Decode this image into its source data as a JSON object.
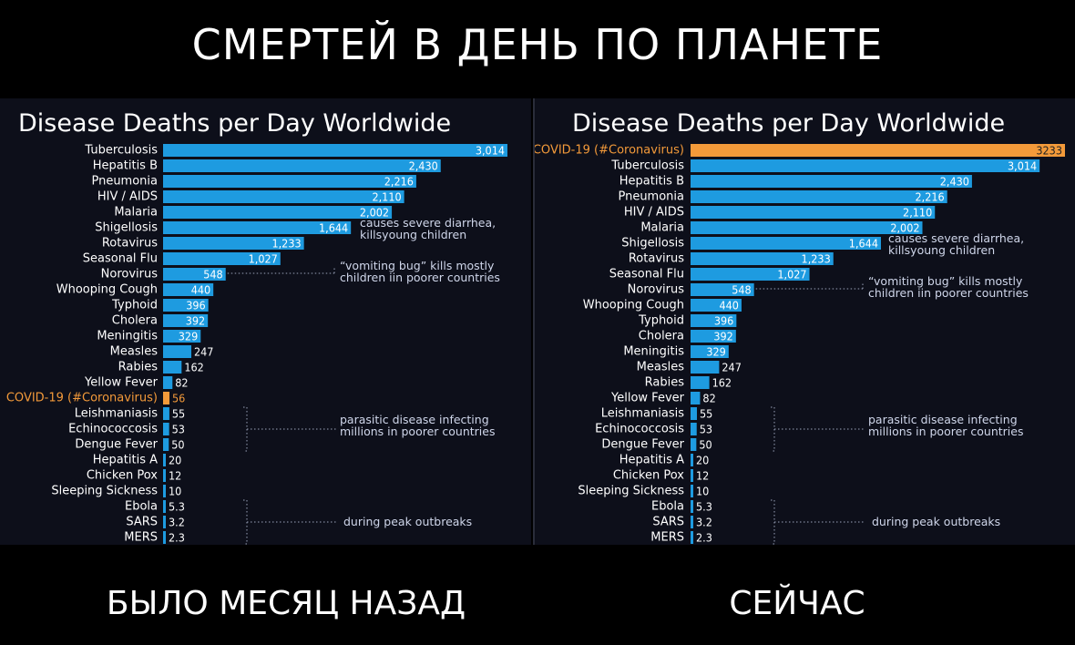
{
  "headline": "СМЕРТЕЙ В ДЕНЬ ПО ПЛАНЕТЕ",
  "captions": {
    "left": "БЫЛО МЕСЯЦ НАЗАД",
    "right": "СЕЙЧАС"
  },
  "colors": {
    "bar": "#1e9be0",
    "highlight": "#f39a3a",
    "label": "#ffffff",
    "note": "#cfd6ea",
    "background": "#0d0f1a"
  },
  "chart_data": [
    {
      "type": "bar",
      "title": "Disease Deaths per Day Worldwide",
      "orientation": "horizontal",
      "xlim": [
        0,
        3014
      ],
      "categories": [
        "Tuberculosis",
        "Hepatitis B",
        "Pneumonia",
        "HIV / AIDS",
        "Malaria",
        "Shigellosis",
        "Rotavirus",
        "Seasonal Flu",
        "Norovirus",
        "Whooping Cough",
        "Typhoid",
        "Cholera",
        "Meningitis",
        "Measles",
        "Rabies",
        "Yellow Fever",
        "COVID-19 (#Coronavirus)",
        "Leishmaniasis",
        "Echinococcosis",
        "Dengue Fever",
        "Hepatitis A",
        "Chicken Pox",
        "Sleeping Sickness",
        "Ebola",
        "SARS",
        "MERS"
      ],
      "values": [
        3014,
        2430,
        2216,
        2110,
        2002,
        1644,
        1233,
        1027,
        548,
        440,
        396,
        392,
        329,
        247,
        162,
        82,
        56,
        55,
        53,
        50,
        20,
        12,
        10,
        5.3,
        3.2,
        2.3
      ],
      "value_labels": [
        "3,014",
        "2,430",
        "2,216",
        "2,110",
        "2,002",
        "1,644",
        "1,233",
        "1,027",
        "548",
        "440",
        "396",
        "392",
        "329",
        "247",
        "162",
        "82",
        "56",
        "55",
        "53",
        "50",
        "20",
        "12",
        "10",
        "5.3",
        "3.2",
        "2.3"
      ],
      "highlight": "COVID-19 (#Coronavirus)",
      "annotations": [
        {
          "text": [
            "causes severe diarrhea,",
            "killsyoung children"
          ],
          "attach": "Shigellosis"
        },
        {
          "text": [
            "“vomiting bug” kills mostly",
            "children iin poorer countries"
          ],
          "attach": "Norovirus"
        },
        {
          "text": [
            "parasitic disease infecting",
            "millions in poorer countries"
          ],
          "range": [
            "Leishmaniasis",
            "Dengue Fever"
          ]
        },
        {
          "text": [
            "during peak outbreaks"
          ],
          "range": [
            "Ebola",
            "MERS"
          ]
        }
      ]
    },
    {
      "type": "bar",
      "title": "Disease Deaths per Day Worldwide",
      "orientation": "horizontal",
      "xlim": [
        0,
        3233
      ],
      "categories": [
        "COVID-19 (#Coronavirus)",
        "Tuberculosis",
        "Hepatitis B",
        "Pneumonia",
        "HIV / AIDS",
        "Malaria",
        "Shigellosis",
        "Rotavirus",
        "Seasonal Flu",
        "Norovirus",
        "Whooping Cough",
        "Typhoid",
        "Cholera",
        "Meningitis",
        "Measles",
        "Rabies",
        "Yellow Fever",
        "Leishmaniasis",
        "Echinococcosis",
        "Dengue Fever",
        "Hepatitis A",
        "Chicken Pox",
        "Sleeping Sickness",
        "Ebola",
        "SARS",
        "MERS"
      ],
      "values": [
        3233,
        3014,
        2430,
        2216,
        2110,
        2002,
        1644,
        1233,
        1027,
        548,
        440,
        396,
        392,
        329,
        247,
        162,
        82,
        55,
        53,
        50,
        20,
        12,
        10,
        5.3,
        3.2,
        2.3
      ],
      "value_labels": [
        "3233",
        "3,014",
        "2,430",
        "2,216",
        "2,110",
        "2,002",
        "1,644",
        "1,233",
        "1,027",
        "548",
        "440",
        "396",
        "392",
        "329",
        "247",
        "162",
        "82",
        "55",
        "53",
        "50",
        "20",
        "12",
        "10",
        "5.3",
        "3.2",
        "2.3"
      ],
      "highlight": "COVID-19 (#Coronavirus)",
      "annotations": [
        {
          "text": [
            "causes severe diarrhea,",
            "killsyoung children"
          ],
          "attach": "Shigellosis"
        },
        {
          "text": [
            "“vomiting bug” kills mostly",
            "children iin poorer countries"
          ],
          "attach": "Norovirus"
        },
        {
          "text": [
            "parasitic disease infecting",
            "millions in poorer countries"
          ],
          "range": [
            "Leishmaniasis",
            "Dengue Fever"
          ]
        },
        {
          "text": [
            "during peak outbreaks"
          ],
          "range": [
            "Ebola",
            "MERS"
          ]
        }
      ]
    }
  ]
}
